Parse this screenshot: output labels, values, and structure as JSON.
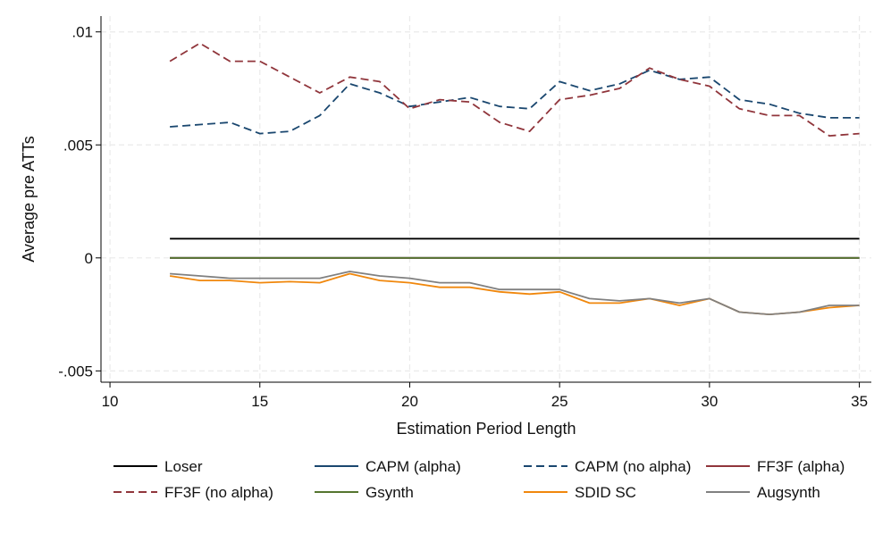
{
  "chart_data": {
    "type": "line",
    "title": "",
    "xlabel": "Estimation Period Length",
    "ylabel": "Average pre ATTs",
    "xlim": [
      9.7,
      35.4
    ],
    "ylim": [
      -0.0055,
      0.0107
    ],
    "xticks": [
      10,
      15,
      20,
      25,
      30,
      35
    ],
    "xtick_labels": [
      "10",
      "15",
      "20",
      "25",
      "30",
      "35"
    ],
    "yticks": [
      -0.005,
      0,
      0.005,
      0.01
    ],
    "ytick_labels": [
      "-.005",
      "0",
      ".005",
      ".01"
    ],
    "grid": true,
    "legend_position": "bottom",
    "x": [
      12,
      13,
      14,
      15,
      16,
      17,
      18,
      19,
      20,
      21,
      22,
      23,
      24,
      25,
      26,
      27,
      28,
      29,
      30,
      31,
      32,
      33,
      34,
      35
    ],
    "series": [
      {
        "name": "Loser",
        "color": "#000000",
        "dash": "solid",
        "values": [
          0.00085,
          0.00085,
          0.00085,
          0.00085,
          0.00085,
          0.00085,
          0.00085,
          0.00085,
          0.00085,
          0.00085,
          0.00085,
          0.00085,
          0.00085,
          0.00085,
          0.00085,
          0.00085,
          0.00085,
          0.00085,
          0.00085,
          0.00085,
          0.00085,
          0.00085,
          0.00085,
          0.00085
        ]
      },
      {
        "name": "CAPM (alpha)",
        "color": "#1a476f",
        "dash": "solid",
        "values": [
          0,
          0,
          0,
          0,
          0,
          0,
          0,
          0,
          0,
          0,
          0,
          0,
          0,
          0,
          0,
          0,
          0,
          0,
          0,
          0,
          0,
          0,
          0,
          0
        ]
      },
      {
        "name": "CAPM (no alpha)",
        "color": "#1a476f",
        "dash": "dashed",
        "values": [
          0.0058,
          0.0059,
          0.006,
          0.0055,
          0.0056,
          0.0063,
          0.0077,
          0.0073,
          0.0067,
          0.0069,
          0.0071,
          0.0067,
          0.0066,
          0.0078,
          0.0074,
          0.0077,
          0.0083,
          0.0079,
          0.008,
          0.007,
          0.0068,
          0.0064,
          0.0062,
          0.0062
        ]
      },
      {
        "name": "FF3F (alpha)",
        "color": "#90353b",
        "dash": "solid",
        "values": [
          0,
          0,
          0,
          0,
          0,
          0,
          0,
          0,
          0,
          0,
          0,
          0,
          0,
          0,
          0,
          0,
          0,
          0,
          0,
          0,
          0,
          0,
          0,
          0
        ]
      },
      {
        "name": "FF3F (no alpha)",
        "color": "#90353b",
        "dash": "dashed",
        "values": [
          0.0087,
          0.0095,
          0.0087,
          0.0087,
          0.008,
          0.0073,
          0.008,
          0.0078,
          0.0066,
          0.007,
          0.0069,
          0.006,
          0.0056,
          0.007,
          0.0072,
          0.0075,
          0.0084,
          0.0079,
          0.0076,
          0.0066,
          0.0063,
          0.0063,
          0.0054,
          0.0055
        ]
      },
      {
        "name": "Gsynth",
        "color": "#55752f",
        "dash": "solid",
        "values": [
          0,
          0,
          0,
          0,
          0,
          0,
          0,
          0,
          0,
          0,
          0,
          0,
          0,
          0,
          0,
          0,
          0,
          0,
          0,
          0,
          0,
          0,
          0,
          0
        ]
      },
      {
        "name": "SDID SC",
        "color": "#f0870c",
        "dash": "solid",
        "values": [
          -0.0008,
          -0.001,
          -0.001,
          -0.0011,
          -0.00105,
          -0.0011,
          -0.0007,
          -0.001,
          -0.0011,
          -0.0013,
          -0.0013,
          -0.0015,
          -0.0016,
          -0.0015,
          -0.002,
          -0.002,
          -0.0018,
          -0.0021,
          -0.0018,
          -0.0024,
          -0.0025,
          -0.0024,
          -0.0022,
          -0.0021
        ]
      },
      {
        "name": "Augsynth",
        "color": "#808080",
        "dash": "solid",
        "values": [
          -0.0007,
          -0.0008,
          -0.0009,
          -0.0009,
          -0.0009,
          -0.0009,
          -0.0006,
          -0.0008,
          -0.0009,
          -0.0011,
          -0.0011,
          -0.0014,
          -0.0014,
          -0.0014,
          -0.0018,
          -0.0019,
          -0.0018,
          -0.002,
          -0.0018,
          -0.0024,
          -0.0025,
          -0.0024,
          -0.0021,
          -0.0021
        ]
      }
    ],
    "legend_order": [
      "Loser",
      "CAPM (alpha)",
      "CAPM (no alpha)",
      "FF3F (alpha)",
      "FF3F (no alpha)",
      "Gsynth",
      "SDID SC",
      "Augsynth"
    ]
  }
}
